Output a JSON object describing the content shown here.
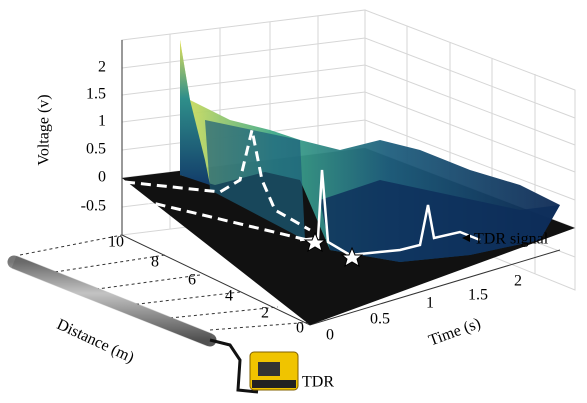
{
  "axes": {
    "voltage": {
      "label": "Voltage (v)",
      "ticks": [
        "2",
        "1.5",
        "1",
        "0.5",
        "0",
        "-0.5"
      ]
    },
    "distance": {
      "label": "Distance (m)",
      "ticks": [
        "10",
        "8",
        "6",
        "4",
        "2",
        "0"
      ]
    },
    "time": {
      "label": "Time (s)",
      "ticks": [
        "0",
        "0.5",
        "1",
        "1.5",
        "2"
      ]
    }
  },
  "annotations": {
    "signal": "TDR signal",
    "device": "TDR"
  }
}
